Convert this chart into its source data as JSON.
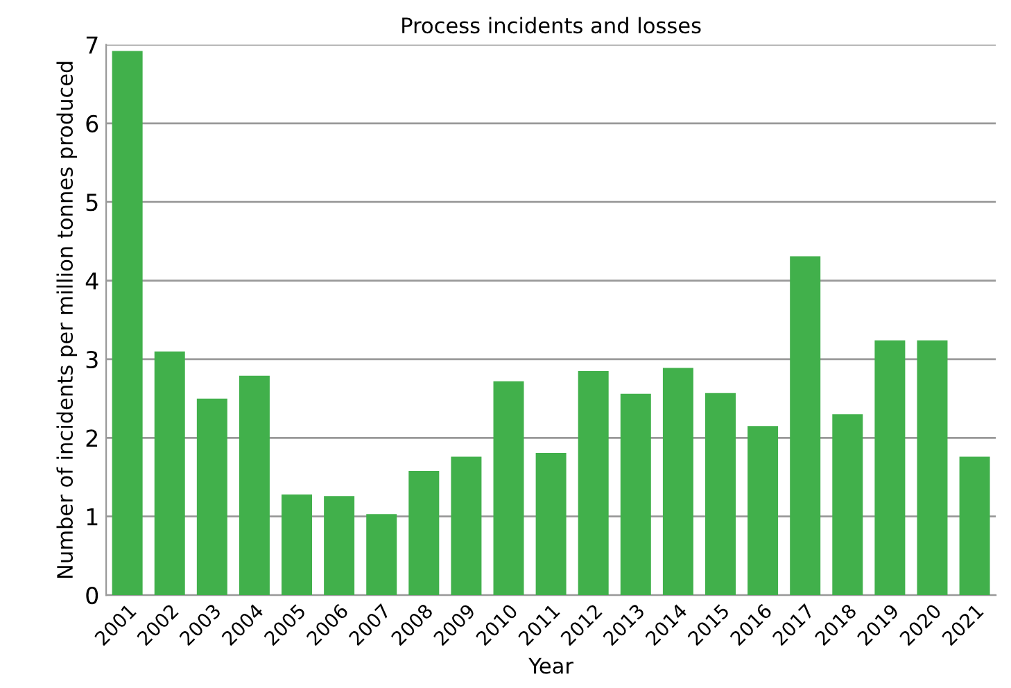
{
  "chart_data": {
    "type": "bar",
    "title": "Process incidents and losses",
    "xlabel": "Year",
    "ylabel": "Number of incidents per million tonnes produced",
    "categories": [
      "2001",
      "2002",
      "2003",
      "2004",
      "2005",
      "2006",
      "2007",
      "2008",
      "2009",
      "2010",
      "2011",
      "2012",
      "2013",
      "2014",
      "2015",
      "2016",
      "2017",
      "2018",
      "2019",
      "2020",
      "2021"
    ],
    "values": [
      6.92,
      3.1,
      2.5,
      2.79,
      1.28,
      1.26,
      1.03,
      1.58,
      1.76,
      2.72,
      1.81,
      2.85,
      2.56,
      2.89,
      2.57,
      2.15,
      4.31,
      2.3,
      3.24,
      3.24,
      1.76
    ],
    "color": "#41b04b",
    "ylim": [
      0,
      7
    ],
    "yticks": [
      0,
      1,
      2,
      3,
      4,
      5,
      6,
      7
    ],
    "grid": "y"
  }
}
